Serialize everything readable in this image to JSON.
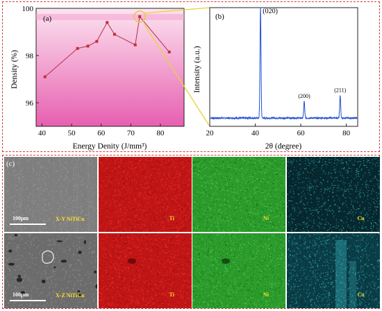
{
  "panel_a": {
    "letter": "(a)",
    "chart_data": {
      "type": "line",
      "xlabel": "Energy Denity (J/mm³)",
      "ylabel": "Density (%)",
      "xlim": [
        38,
        88
      ],
      "ylim": [
        95.0,
        100.0
      ],
      "xticks": [
        40,
        50,
        60,
        70,
        80
      ],
      "yticks": [
        96,
        98,
        100
      ],
      "x": [
        41,
        52,
        55.5,
        58.5,
        62,
        64.5,
        71.5,
        73,
        83
      ],
      "y": [
        97.1,
        98.3,
        98.4,
        98.6,
        99.4,
        98.9,
        98.45,
        99.65,
        98.15
      ],
      "marker_color": "#c23030",
      "line_color": "#b0304a",
      "background_top": "#fce4f0",
      "background_bottom": "#e75fb0",
      "highlight_x": 73,
      "highlight_y": 99.65
    }
  },
  "panel_b": {
    "letter": "(b)",
    "chart_data": {
      "type": "line",
      "xlabel": "2θ (degree)",
      "ylabel": "Intensity (a.u.)",
      "xlim": [
        20,
        85
      ],
      "ylim": [
        0,
        100
      ],
      "xticks": [
        20,
        40,
        60,
        80
      ],
      "baseline": 7,
      "peaks": [
        {
          "x": 42.3,
          "height": 93,
          "label": "(020)"
        },
        {
          "x": 61.5,
          "height": 14,
          "label": "(200)"
        },
        {
          "x": 77.3,
          "height": 19,
          "label": "(211)"
        }
      ],
      "line_color": "#1f4fd8"
    }
  },
  "panel_c": {
    "letter": "(c)",
    "rows": [
      {
        "sample": "X-Y NiTiCu",
        "scale": "100μm",
        "maps": [
          {
            "element": "Ti",
            "base": "#c01515",
            "label_color": "#ffe02a"
          },
          {
            "element": "Ni",
            "base": "#2a9a2a",
            "label_color": "#ffe02a"
          },
          {
            "element": "Cu",
            "base": "#06282e",
            "label_color": "#ffe02a"
          }
        ]
      },
      {
        "sample": "X-Z NiTiCu",
        "scale": "100μm",
        "maps": [
          {
            "element": "Ti",
            "base": "#c01515",
            "label_color": "#ffe02a"
          },
          {
            "element": "Ni",
            "base": "#2a9a2a",
            "label_color": "#ffe02a"
          },
          {
            "element": "Cu",
            "base": "#0a3d46",
            "label_color": "#ffe02a"
          }
        ]
      }
    ]
  }
}
